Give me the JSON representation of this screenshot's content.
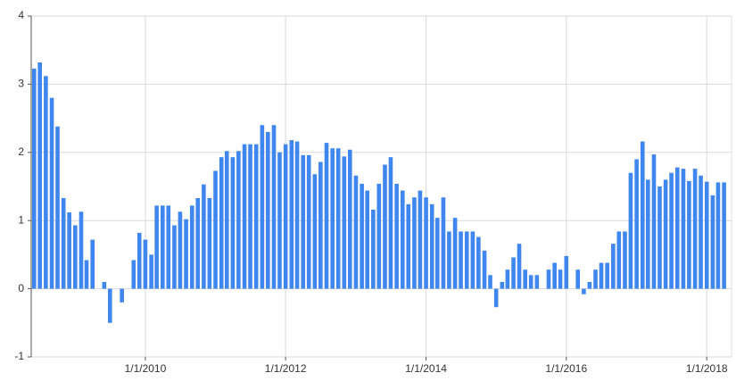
{
  "chart_data": {
    "type": "bar",
    "color": "#3f86ef",
    "grid": true,
    "x": [
      "2008-06",
      "2008-07",
      "2008-08",
      "2008-09",
      "2008-10",
      "2008-11",
      "2008-12",
      "2009-01",
      "2009-02",
      "2009-03",
      "2009-04",
      "2009-05",
      "2009-06",
      "2009-07",
      "2009-08",
      "2009-09",
      "2009-10",
      "2009-11",
      "2009-12",
      "2010-01",
      "2010-02",
      "2010-03",
      "2010-04",
      "2010-05",
      "2010-06",
      "2010-07",
      "2010-08",
      "2010-09",
      "2010-10",
      "2010-11",
      "2010-12",
      "2011-01",
      "2011-02",
      "2011-03",
      "2011-04",
      "2011-05",
      "2011-06",
      "2011-07",
      "2011-08",
      "2011-09",
      "2011-10",
      "2011-11",
      "2011-12",
      "2012-01",
      "2012-02",
      "2012-03",
      "2012-04",
      "2012-05",
      "2012-06",
      "2012-07",
      "2012-08",
      "2012-09",
      "2012-10",
      "2012-11",
      "2012-12",
      "2013-01",
      "2013-02",
      "2013-03",
      "2013-04",
      "2013-05",
      "2013-06",
      "2013-07",
      "2013-08",
      "2013-09",
      "2013-10",
      "2013-11",
      "2013-12",
      "2014-01",
      "2014-02",
      "2014-03",
      "2014-04",
      "2014-05",
      "2014-06",
      "2014-07",
      "2014-08",
      "2014-09",
      "2014-10",
      "2014-11",
      "2014-12",
      "2015-01",
      "2015-02",
      "2015-03",
      "2015-04",
      "2015-05",
      "2015-06",
      "2015-07",
      "2015-08",
      "2015-09",
      "2015-10",
      "2015-11",
      "2015-12",
      "2016-01",
      "2016-02",
      "2016-03",
      "2016-04",
      "2016-05",
      "2016-06",
      "2016-07",
      "2016-08",
      "2016-09",
      "2016-10",
      "2016-11",
      "2016-12",
      "2017-01",
      "2017-02",
      "2017-03",
      "2017-04",
      "2017-05",
      "2017-06",
      "2017-07",
      "2017-08",
      "2017-09",
      "2017-10",
      "2017-11",
      "2017-12",
      "2018-01",
      "2018-02",
      "2018-03",
      "2018-04"
    ],
    "values": [
      3.23,
      3.32,
      3.12,
      2.8,
      2.38,
      1.33,
      1.12,
      0.93,
      1.13,
      0.42,
      0.72,
      0,
      0.1,
      -0.5,
      0,
      -0.2,
      0,
      0.42,
      0.82,
      0.72,
      0.5,
      1.22,
      1.22,
      1.22,
      0.93,
      1.13,
      1.02,
      1.22,
      1.33,
      1.53,
      1.33,
      1.73,
      1.93,
      2.02,
      1.93,
      2.02,
      2.12,
      2.12,
      2.12,
      2.4,
      2.3,
      2.4,
      2.0,
      2.12,
      2.18,
      2.16,
      1.96,
      1.96,
      1.68,
      1.86,
      2.14,
      2.06,
      2.06,
      1.94,
      2.04,
      1.66,
      1.54,
      1.44,
      1.16,
      1.54,
      1.82,
      1.93,
      1.54,
      1.44,
      1.24,
      1.34,
      1.44,
      1.34,
      1.24,
      1.04,
      1.34,
      0.84,
      1.04,
      0.84,
      0.84,
      0.84,
      0.76,
      0.56,
      0.2,
      -0.27,
      0.1,
      0.28,
      0.46,
      0.66,
      0.28,
      0.2,
      0.2,
      0,
      0.28,
      0.38,
      0.28,
      0.48,
      0,
      0.28,
      -0.08,
      0.1,
      0.28,
      0.38,
      0.38,
      0.66,
      0.84,
      0.84,
      1.7,
      1.9,
      2.16,
      1.6,
      1.97,
      1.5,
      1.6,
      1.7,
      1.78,
      1.76,
      1.58,
      1.76,
      1.66,
      1.57,
      1.37,
      1.56,
      1.56
    ],
    "xlim": [
      "2008-05-17",
      "2018-05-10"
    ],
    "xticks": [
      {
        "value": "2010-01-01",
        "label": "1/1/2010"
      },
      {
        "value": "2012-01-01",
        "label": "1/1/2012"
      },
      {
        "value": "2014-01-01",
        "label": "1/1/2014"
      },
      {
        "value": "2016-01-01",
        "label": "1/1/2016"
      },
      {
        "value": "2018-01-01",
        "label": "1/1/2018"
      }
    ],
    "ylim": [
      -1,
      4
    ],
    "yticks": [
      -1,
      0,
      1,
      2,
      3,
      4
    ]
  }
}
